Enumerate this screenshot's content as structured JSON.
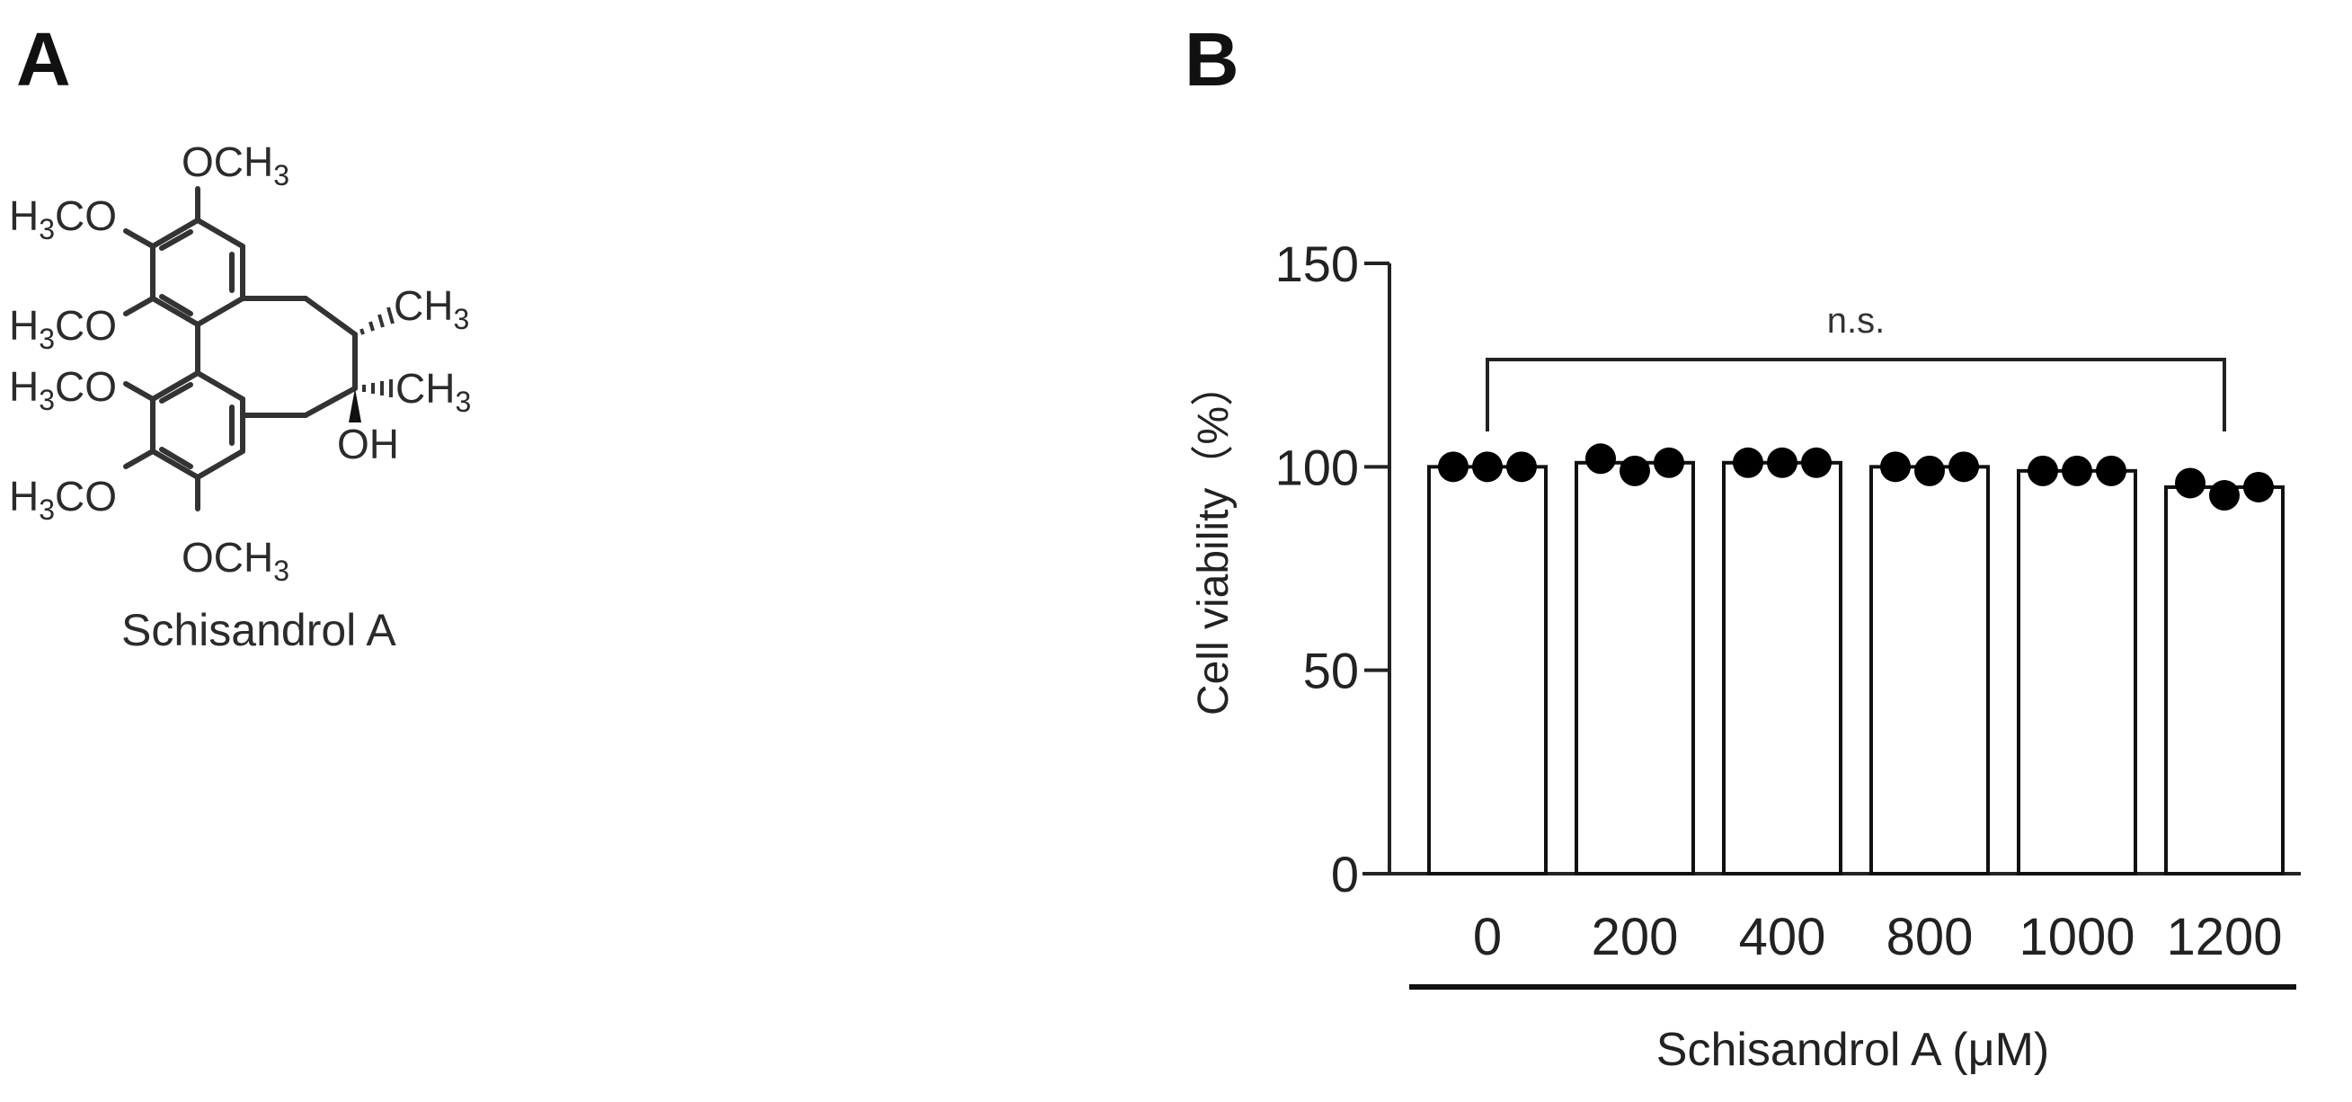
{
  "panels": {
    "a_label": "A",
    "b_label": "B"
  },
  "structure": {
    "name": "Schisandrol A",
    "labels": {
      "och3_top": "OCH",
      "h3co_1": "H",
      "h3co_2": "H",
      "h3co_3": "H",
      "h3co_4": "H",
      "och3_bottom": "OCH",
      "ch3_upper": "CH",
      "ch3_lower": "CH",
      "oh": "OH",
      "co": "CO",
      "sub3": "3"
    }
  },
  "chart_data": {
    "type": "bar",
    "categories": [
      "0",
      "200",
      "400",
      "800",
      "1000",
      "1200"
    ],
    "values": [
      100,
      101,
      101,
      100,
      99,
      95
    ],
    "points": [
      [
        100,
        100,
        100
      ],
      [
        102,
        99,
        101
      ],
      [
        101,
        101,
        101
      ],
      [
        100,
        99,
        100
      ],
      [
        99,
        99,
        99
      ],
      [
        96,
        93,
        95
      ]
    ],
    "title": "",
    "xlabel": "Schisandrol A (μM)",
    "ylabel": "Cell viability（%）",
    "ylim": [
      0,
      150
    ],
    "yticks": [
      0,
      50,
      100,
      150
    ],
    "annotation": "n.s.",
    "bar_fill": "#ffffff",
    "bar_stroke": "#111111",
    "point_color": "#000000"
  }
}
